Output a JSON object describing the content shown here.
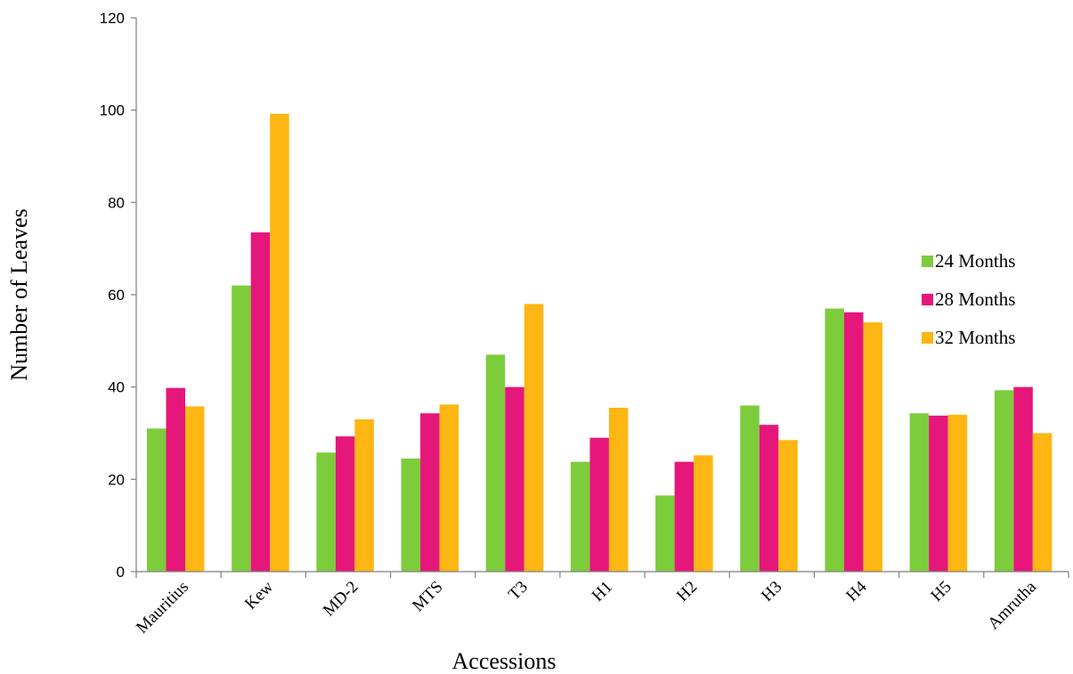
{
  "chart_data": {
    "type": "bar",
    "title": "",
    "xlabel": "Accessions",
    "ylabel": "Number of Leaves",
    "ylim": [
      0,
      120
    ],
    "yticks": [
      0,
      20,
      40,
      60,
      80,
      100,
      120
    ],
    "grid": false,
    "legend_position": "right",
    "categories": [
      "Mauritius",
      "Kew",
      "MD-2",
      "MTS",
      "T3",
      "H1",
      "H2",
      "H3",
      "H4",
      "H5",
      "Amrutha"
    ],
    "series": [
      {
        "name": "24 Months",
        "color": "#7ccc3c",
        "values": [
          31,
          62,
          25.8,
          24.5,
          47,
          23.8,
          16.5,
          36,
          57,
          34.3,
          39.3
        ]
      },
      {
        "name": "28 Months",
        "color": "#e6177a",
        "values": [
          39.8,
          73.5,
          29.3,
          34.3,
          40,
          29,
          23.8,
          31.8,
          56.2,
          33.8,
          40
        ]
      },
      {
        "name": "32 Months",
        "color": "#fdb613",
        "values": [
          35.8,
          99.2,
          33,
          36.2,
          58,
          35.5,
          25.2,
          28.5,
          54,
          34,
          30
        ]
      }
    ]
  }
}
